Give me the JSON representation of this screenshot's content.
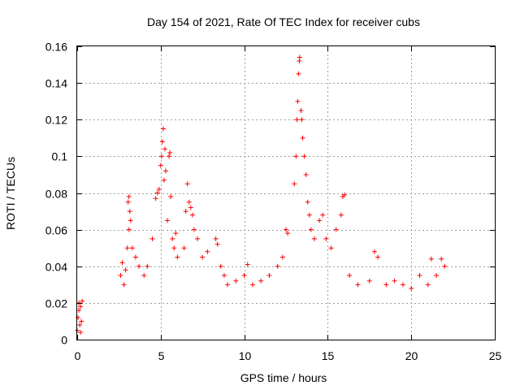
{
  "chart_data": {
    "type": "scatter",
    "title": "Day 154 of 2021, Rate Of TEC Index for receiver cubs",
    "xlabel": "GPS time / hours",
    "ylabel": "ROTI / TECUs",
    "xlim": [
      0,
      25
    ],
    "ylim": [
      0,
      0.16
    ],
    "x_ticks": [
      0,
      5,
      10,
      15,
      20,
      25
    ],
    "x_tick_labels": [
      "0",
      "5",
      "10",
      "15",
      "20",
      "25"
    ],
    "y_ticks": [
      0,
      0.02,
      0.04,
      0.06,
      0.08,
      0.1,
      0.12,
      0.14,
      0.16
    ],
    "y_tick_labels": [
      "0",
      "0.02",
      "0.04",
      "0.06",
      "0.08",
      "0.1",
      "0.12",
      "0.14",
      "0.16"
    ],
    "grid": true,
    "marker": "+",
    "series_color": "#ff0000",
    "series": [
      {
        "values": [
          [
            0.0,
            0.005
          ],
          [
            0.05,
            0.012
          ],
          [
            0.1,
            0.02
          ],
          [
            0.15,
            0.008
          ],
          [
            0.2,
            0.018
          ],
          [
            0.25,
            0.01
          ],
          [
            0.3,
            0.021
          ],
          [
            0.1,
            0.016
          ],
          [
            0.2,
            0.004
          ],
          [
            2.6,
            0.035
          ],
          [
            2.7,
            0.042
          ],
          [
            2.8,
            0.03
          ],
          [
            2.9,
            0.038
          ],
          [
            3.0,
            0.05
          ],
          [
            3.05,
            0.075
          ],
          [
            3.1,
            0.078
          ],
          [
            3.15,
            0.07
          ],
          [
            3.2,
            0.065
          ],
          [
            3.1,
            0.06
          ],
          [
            3.3,
            0.05
          ],
          [
            3.5,
            0.045
          ],
          [
            3.7,
            0.04
          ],
          [
            4.0,
            0.035
          ],
          [
            4.2,
            0.04
          ],
          [
            4.5,
            0.055
          ],
          [
            4.7,
            0.077
          ],
          [
            4.8,
            0.08
          ],
          [
            4.9,
            0.082
          ],
          [
            5.0,
            0.095
          ],
          [
            5.05,
            0.1
          ],
          [
            5.1,
            0.108
          ],
          [
            5.15,
            0.115
          ],
          [
            5.2,
            0.087
          ],
          [
            5.25,
            0.104
          ],
          [
            5.3,
            0.092
          ],
          [
            5.4,
            0.065
          ],
          [
            5.5,
            0.1
          ],
          [
            5.55,
            0.102
          ],
          [
            5.6,
            0.078
          ],
          [
            5.7,
            0.055
          ],
          [
            5.8,
            0.05
          ],
          [
            5.9,
            0.058
          ],
          [
            6.0,
            0.045
          ],
          [
            6.4,
            0.05
          ],
          [
            6.5,
            0.07
          ],
          [
            6.6,
            0.085
          ],
          [
            6.7,
            0.075
          ],
          [
            6.8,
            0.072
          ],
          [
            6.9,
            0.068
          ],
          [
            7.0,
            0.06
          ],
          [
            7.2,
            0.055
          ],
          [
            7.5,
            0.045
          ],
          [
            7.8,
            0.048
          ],
          [
            8.3,
            0.055
          ],
          [
            8.4,
            0.052
          ],
          [
            8.6,
            0.04
          ],
          [
            8.8,
            0.035
          ],
          [
            9.0,
            0.03
          ],
          [
            9.5,
            0.032
          ],
          [
            10.0,
            0.035
          ],
          [
            10.2,
            0.041
          ],
          [
            10.5,
            0.03
          ],
          [
            11.0,
            0.032
          ],
          [
            11.5,
            0.035
          ],
          [
            12.0,
            0.04
          ],
          [
            12.3,
            0.045
          ],
          [
            12.5,
            0.06
          ],
          [
            12.6,
            0.058
          ],
          [
            13.0,
            0.085
          ],
          [
            13.1,
            0.1
          ],
          [
            13.15,
            0.12
          ],
          [
            13.2,
            0.13
          ],
          [
            13.25,
            0.145
          ],
          [
            13.3,
            0.152
          ],
          [
            13.32,
            0.154
          ],
          [
            13.4,
            0.125
          ],
          [
            13.45,
            0.12
          ],
          [
            13.5,
            0.11
          ],
          [
            13.6,
            0.1
          ],
          [
            13.7,
            0.09
          ],
          [
            13.8,
            0.075
          ],
          [
            13.9,
            0.068
          ],
          [
            14.0,
            0.06
          ],
          [
            14.2,
            0.055
          ],
          [
            14.5,
            0.065
          ],
          [
            14.7,
            0.068
          ],
          [
            14.9,
            0.055
          ],
          [
            15.2,
            0.05
          ],
          [
            15.5,
            0.06
          ],
          [
            15.8,
            0.068
          ],
          [
            15.9,
            0.078
          ],
          [
            16.0,
            0.079
          ],
          [
            16.3,
            0.035
          ],
          [
            16.8,
            0.03
          ],
          [
            17.5,
            0.032
          ],
          [
            17.8,
            0.048
          ],
          [
            18.0,
            0.045
          ],
          [
            18.5,
            0.03
          ],
          [
            19.0,
            0.032
          ],
          [
            19.5,
            0.03
          ],
          [
            20.0,
            0.028
          ],
          [
            20.5,
            0.035
          ],
          [
            21.0,
            0.03
          ],
          [
            21.2,
            0.044
          ],
          [
            21.5,
            0.035
          ],
          [
            21.8,
            0.044
          ],
          [
            22.0,
            0.04
          ]
        ]
      }
    ]
  }
}
